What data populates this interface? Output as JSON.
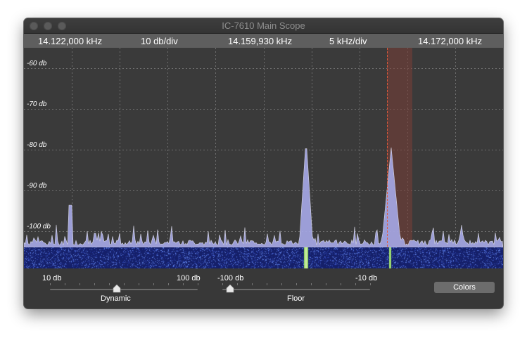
{
  "window": {
    "title": "IC-7610 Main Scope"
  },
  "freq_bar": {
    "left_freq": "14.122,000 kHz",
    "ref_level": "10 db/div",
    "center_freq": "14.159,930 kHz",
    "span": "5 kHz/div",
    "right_freq": "14.172,000 kHz"
  },
  "scope": {
    "db_labels": [
      "-60 db",
      "-70 db",
      "-80 db",
      "-90 db",
      "-100 db"
    ],
    "db_values": [
      -60,
      -70,
      -80,
      -90,
      -100
    ],
    "db_range": [
      -55,
      -104
    ],
    "marker_color": "#e05a3a",
    "passband_color": "#7a3e37",
    "spectrum_color": "#a7a9e8",
    "peaks": [
      {
        "freq_khz": 14.16,
        "level_db": -80
      },
      {
        "freq_khz": 14.1638,
        "level_db": -76
      }
    ]
  },
  "controls": {
    "dynamic": {
      "label": "Dynamic",
      "min_label": "10 db",
      "max_label": "100 db",
      "value_fraction": 0.45
    },
    "floor": {
      "label": "Floor",
      "min_label": "-100 db",
      "max_label": "-10 db",
      "value_fraction": 0.05
    },
    "colors_button": "Colors"
  }
}
